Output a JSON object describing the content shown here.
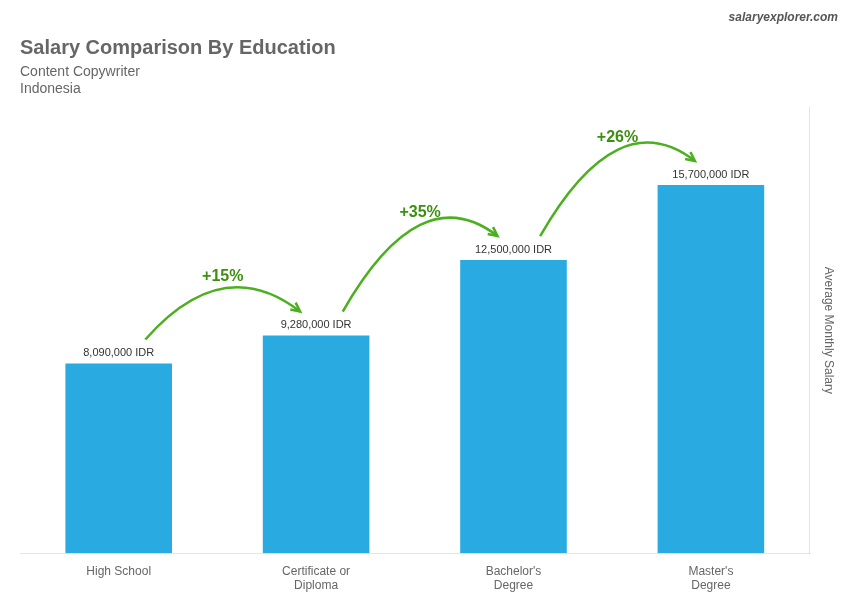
{
  "chart_data": {
    "type": "bar",
    "title": "Salary Comparison By Education",
    "subtitle": [
      "Content Copywriter",
      "Indonesia"
    ],
    "source": "salaryexplorer.com",
    "categories": [
      "High School",
      "Certificate or\nDiploma",
      "Bachelor's\nDegree",
      "Master's\nDegree"
    ],
    "values": [
      8090000,
      9280000,
      12500000,
      15700000
    ],
    "value_labels": [
      "8,090,000 IDR",
      "9,280,000 IDR",
      "12,500,000 IDR",
      "15,700,000 IDR"
    ],
    "data_labels": true,
    "annotations": [
      "+15%",
      "+35%",
      "+26%"
    ],
    "ylabel": "Average Monthly Salary",
    "ylim": [
      0,
      19000000
    ],
    "tick_labels": "x",
    "grid": false,
    "color": "#29ABE2"
  }
}
